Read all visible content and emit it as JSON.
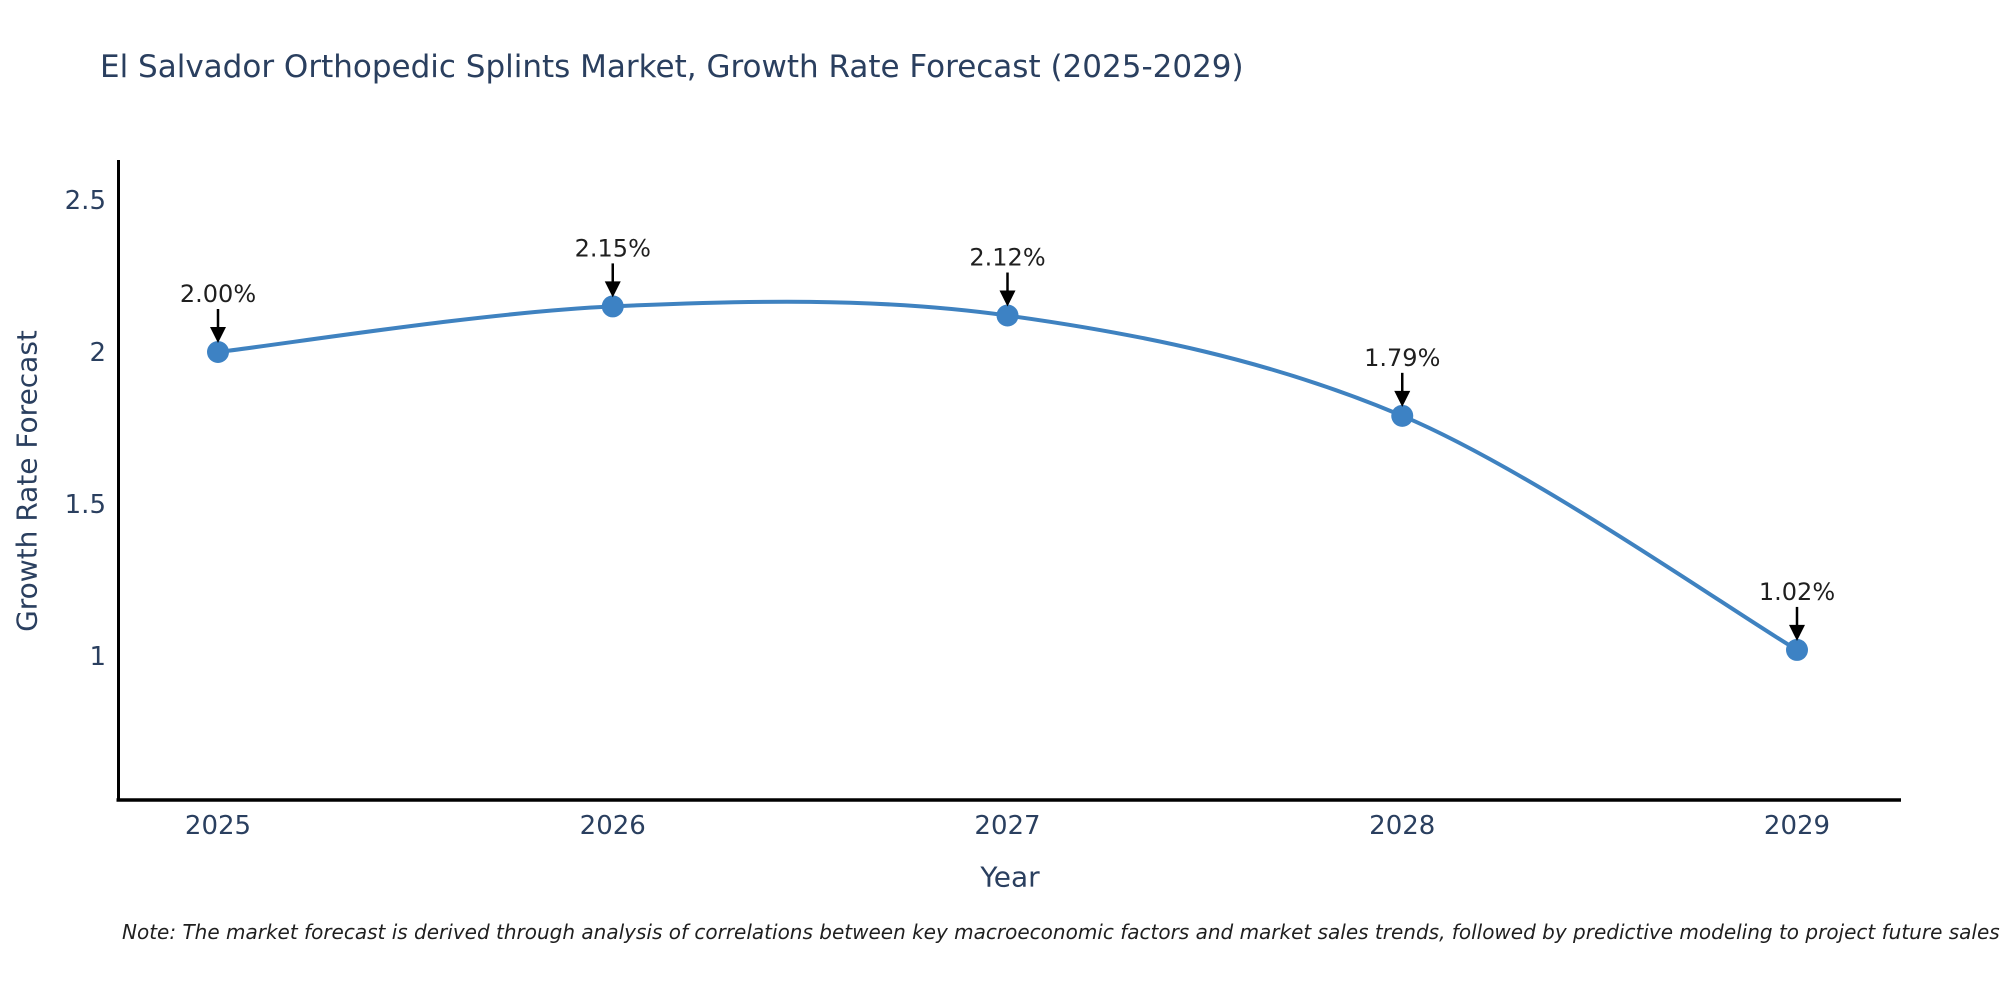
{
  "chart_data": {
    "type": "line",
    "title": "El Salvador Orthopedic Splints Market, Growth Rate Forecast (2025-2029)",
    "xlabel": "Year",
    "ylabel": "Growth Rate Forecast",
    "categories": [
      "2025",
      "2026",
      "2027",
      "2028",
      "2029"
    ],
    "series": [
      {
        "name": "Growth Rate Forecast",
        "values": [
          2.0,
          2.15,
          2.12,
          1.79,
          1.02
        ],
        "point_labels": [
          "2.00%",
          "2.15%",
          "2.12%",
          "1.79%",
          "1.02%"
        ]
      }
    ],
    "yticks": [
      1,
      1.5,
      2,
      2.5
    ],
    "ytick_labels": [
      "1",
      "1.5",
      "2",
      "2.5"
    ],
    "ylim": [
      0.53,
      2.63
    ],
    "grid": false,
    "legend_position": "none",
    "note": "Note: The market forecast is derived through analysis of correlations between key macroeconomic factors and market sales trends, followed by predictive modeling to project future sales"
  },
  "colors": {
    "line": "#3f82c0",
    "marker": "#3d82c4",
    "title_text": "#2a3f5f",
    "tick_text": "#2a3f5f",
    "axis_line": "#000000",
    "annotation_text": "#1f1f1f",
    "arrow": "#000000",
    "background": "#ffffff"
  }
}
